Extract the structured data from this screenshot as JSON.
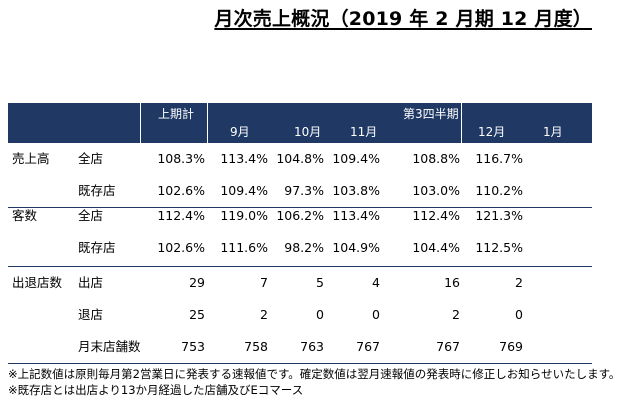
{
  "title": "月次売上概況（2019 年 2 月期 12 月度）",
  "header": {
    "first_half": "上期計",
    "q3": "第3四半期",
    "months": [
      "9月",
      "10月",
      "11月",
      "12月",
      "1月"
    ]
  },
  "groups": [
    {
      "label": "売上高",
      "rows": [
        {
          "sub": "全店",
          "values": [
            "108.3%",
            "113.4%",
            "104.8%",
            "109.4%",
            "108.8%",
            "116.7%",
            ""
          ]
        },
        {
          "sub": "既存店",
          "values": [
            "102.6%",
            "109.4%",
            "97.3%",
            "103.8%",
            "103.0%",
            "110.2%",
            ""
          ]
        }
      ]
    },
    {
      "label": "客数",
      "rows": [
        {
          "sub": "全店",
          "values": [
            "112.4%",
            "119.0%",
            "106.2%",
            "113.4%",
            "112.4%",
            "121.3%",
            ""
          ]
        },
        {
          "sub": "既存店",
          "values": [
            "102.6%",
            "111.6%",
            "98.2%",
            "104.9%",
            "104.4%",
            "112.5%",
            ""
          ]
        }
      ]
    },
    {
      "label": "出退店数",
      "rows": [
        {
          "sub": "出店",
          "values": [
            "29",
            "7",
            "5",
            "4",
            "16",
            "2",
            ""
          ]
        },
        {
          "sub": "退店",
          "values": [
            "25",
            "2",
            "0",
            "0",
            "2",
            "0",
            ""
          ]
        },
        {
          "sub": "月末店舗数",
          "values": [
            "753",
            "758",
            "763",
            "767",
            "767",
            "769",
            ""
          ]
        }
      ]
    }
  ],
  "notes": [
    "※上記数値は原則毎月第2営業日に発表する速報値です。確定数値は翌月速報値の発表時に修正しお知らせいたします。",
    "※既存店とは出店より13か月経過した店舗及びEコマース"
  ]
}
